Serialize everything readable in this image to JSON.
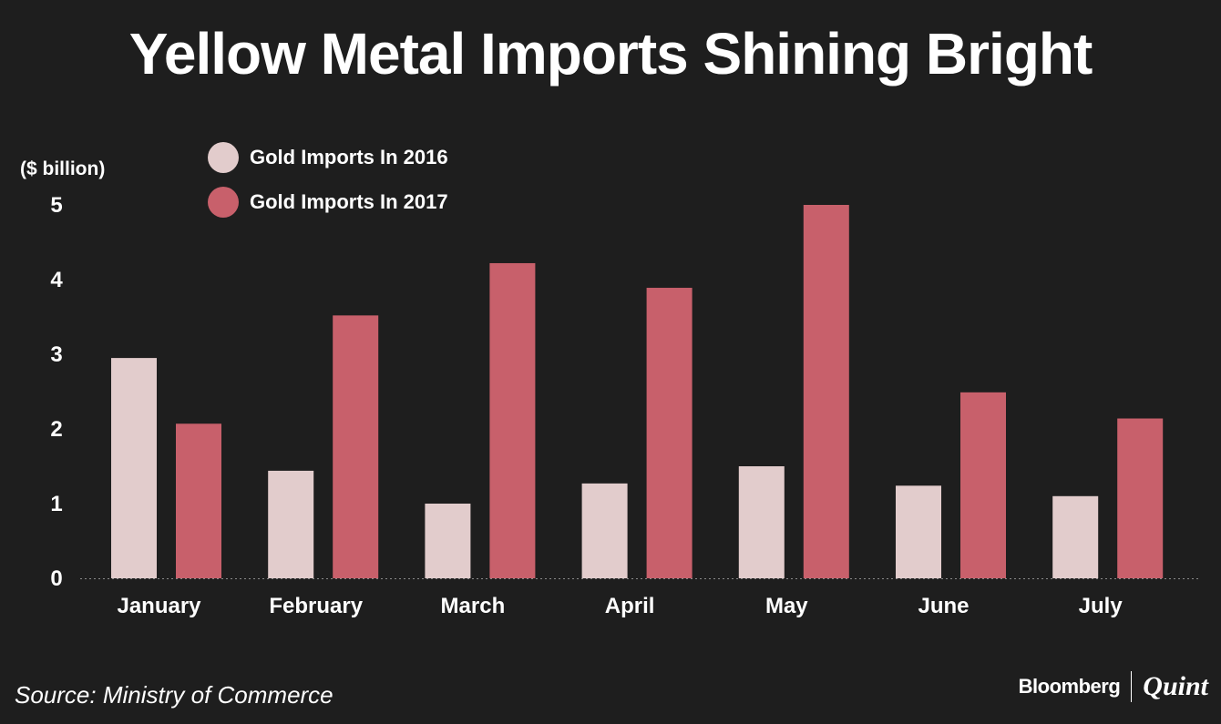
{
  "chart_data": {
    "type": "bar",
    "title": "Yellow Metal Imports Shining Bright",
    "ylabel": "($ billion)",
    "xlabel": "",
    "categories": [
      "January",
      "February",
      "March",
      "April",
      "May",
      "June",
      "July"
    ],
    "series": [
      {
        "name": "Gold Imports In 2016",
        "values": [
          2.95,
          1.44,
          1.0,
          1.27,
          1.5,
          1.24,
          1.1
        ],
        "color": "#e2cccc"
      },
      {
        "name": "Gold Imports In 2017",
        "values": [
          2.07,
          3.52,
          4.22,
          3.89,
          5.0,
          2.49,
          2.14
        ],
        "color": "#c8606b"
      }
    ],
    "ylim": [
      0,
      5
    ],
    "yticks": [
      "0",
      "1",
      "2",
      "3",
      "4",
      "5"
    ],
    "grid": false,
    "legend_position": "top-left",
    "background": "#1e1e1e"
  },
  "source": "Source: Ministry of Commerce",
  "brand": {
    "bloomberg": "Bloomberg",
    "quint": "Quint"
  }
}
